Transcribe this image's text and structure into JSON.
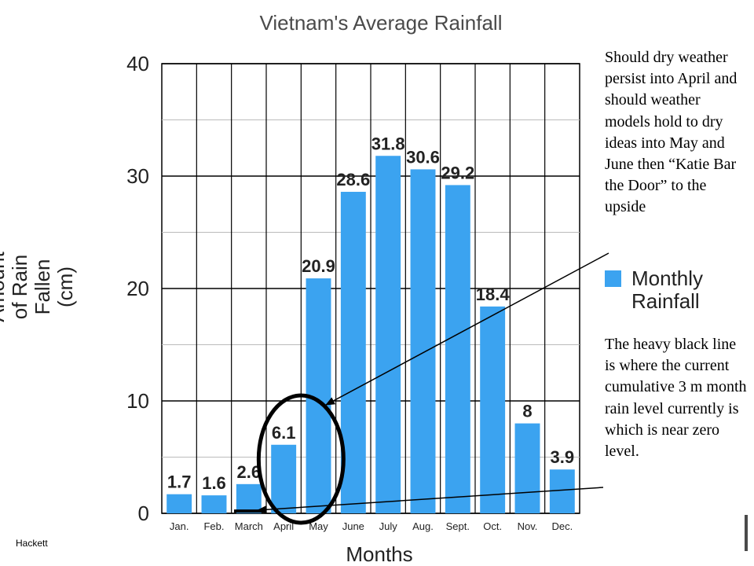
{
  "chart_data": {
    "type": "bar",
    "title": "Vietnam's Average Rainfall",
    "xlabel": "Months",
    "ylabel": [
      "Amount",
      "of Rain",
      "Fallen",
      "(cm)"
    ],
    "categories": [
      "Jan.",
      "Feb.",
      "March",
      "April",
      "May",
      "June",
      "July",
      "Aug.",
      "Sept.",
      "Oct.",
      "Nov.",
      "Dec."
    ],
    "series": [
      {
        "name": "Monthly Rainfall",
        "values": [
          1.7,
          1.6,
          2.6,
          6.1,
          20.9,
          28.6,
          31.8,
          30.6,
          29.2,
          18.4,
          8,
          3.9
        ],
        "value_labels": [
          "1.7",
          "1.6",
          "2.6",
          "6.1",
          "20.9",
          "28.6",
          "31.8",
          "30.6",
          "29.2",
          "18.4",
          "8",
          "3.9"
        ]
      }
    ],
    "ylim": [
      0,
      40
    ],
    "yticks": [
      0,
      10,
      20,
      30,
      40
    ],
    "grid": true,
    "legend": {
      "placement": "right",
      "lines": [
        "Monthly",
        "Rainfall"
      ]
    },
    "bar_color": "#3ba3f0",
    "annotations": {
      "ellipse_around": [
        "April",
        "May"
      ],
      "heavy_line_level": 0.2
    }
  },
  "notes": {
    "top": "Should dry weather persist into April and should weather models hold to dry ideas into May and June then “Katie Bar the Door” to the upside",
    "bottom": "The heavy black line is where the current cumulative 3 m month rain level currently is which is near zero level."
  },
  "watermark": "Hackett"
}
